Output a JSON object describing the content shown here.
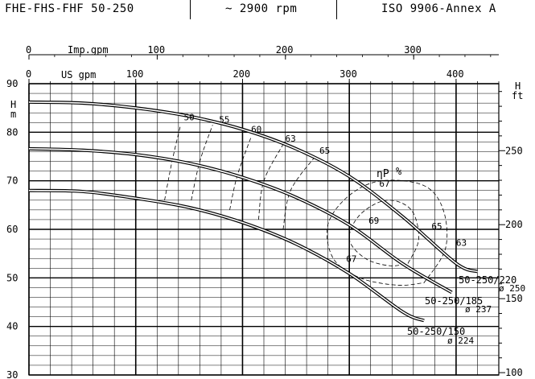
{
  "header": {
    "model": "FHE-FHS-FHF 50-250",
    "speed": "~ 2900 rpm",
    "standard": "ISO 9906-Annex A"
  },
  "chart_data": {
    "type": "line",
    "title": "",
    "x_primary": {
      "label": "US gpm",
      "ticks": [
        "0",
        "100",
        "200",
        "300",
        "400"
      ],
      "range": [
        0,
        440
      ]
    },
    "x_secondary": {
      "label": "Imp.gpm",
      "ticks": [
        "0",
        "100",
        "200",
        "300"
      ]
    },
    "y_left": {
      "unit_line1": "H",
      "unit_line2": "m",
      "ticks": [
        "30",
        "40",
        "50",
        "60",
        "70",
        "80",
        "90"
      ],
      "range": [
        30,
        90
      ]
    },
    "y_right": {
      "unit_line1": "H",
      "unit_line2": "ft",
      "ticks": [
        "100",
        "150",
        "200",
        "250"
      ]
    },
    "grid": true,
    "efficiency_label_main": "ηP",
    "efficiency_label_pct": "%",
    "series": [
      {
        "name": "50-250/220",
        "diameter": "ø 250",
        "points": [
          [
            0,
            86.2
          ],
          [
            50,
            86.0
          ],
          [
            100,
            85.0
          ],
          [
            150,
            83.3
          ],
          [
            200,
            80.6
          ],
          [
            250,
            76.6
          ],
          [
            300,
            70.9
          ],
          [
            350,
            62.6
          ],
          [
            400,
            53.0
          ],
          [
            420,
            51.3
          ]
        ]
      },
      {
        "name": "50-250/185",
        "diameter": "ø 237",
        "points": [
          [
            0,
            76.6
          ],
          [
            50,
            76.3
          ],
          [
            100,
            75.4
          ],
          [
            150,
            73.6
          ],
          [
            200,
            70.7
          ],
          [
            250,
            66.6
          ],
          [
            300,
            60.9
          ],
          [
            350,
            52.9
          ],
          [
            396,
            47.0
          ]
        ]
      },
      {
        "name": "50-250/150",
        "diameter": "ø 224",
        "points": [
          [
            0,
            68.0
          ],
          [
            50,
            67.8
          ],
          [
            100,
            66.4
          ],
          [
            150,
            64.5
          ],
          [
            200,
            61.4
          ],
          [
            250,
            57.0
          ],
          [
            300,
            50.9
          ],
          [
            350,
            43.0
          ],
          [
            370,
            41.2
          ]
        ]
      }
    ],
    "efficiency_labels": [
      "50",
      "55",
      "60",
      "63",
      "65",
      "67",
      "69",
      "67",
      "65",
      "63"
    ],
    "efficiency_points": [
      [
        145,
        82.5
      ],
      [
        178,
        82.0
      ],
      [
        208,
        80.0
      ],
      [
        240,
        78.1
      ],
      [
        272,
        75.6
      ],
      [
        328,
        68.8
      ],
      [
        318,
        61.2
      ],
      [
        297,
        53.3
      ],
      [
        377,
        60.0
      ],
      [
        400,
        56.6
      ]
    ],
    "iso_efficiency_curves": [
      {
        "value": "50",
        "points": [
          [
            127,
            66
          ],
          [
            134,
            74
          ],
          [
            142,
            81.5
          ]
        ]
      },
      {
        "value": "55",
        "points": [
          [
            152,
            66
          ],
          [
            160,
            74
          ],
          [
            172,
            81.5
          ]
        ]
      },
      {
        "value": "60",
        "points": [
          [
            188,
            64
          ],
          [
            195,
            71
          ],
          [
            208,
            79
          ]
        ]
      },
      {
        "value": "63",
        "points": [
          [
            215,
            62
          ],
          [
            220,
            70
          ],
          [
            238,
            77.5
          ]
        ]
      },
      {
        "value": "65",
        "points": [
          [
            238,
            60
          ],
          [
            245,
            68
          ],
          [
            268,
            75
          ]
        ]
      }
    ],
    "efficiency_island_outer": [
      [
        370,
        49
      ],
      [
        390,
        56
      ],
      [
        388,
        64
      ],
      [
        370,
        69
      ],
      [
        330,
        70
      ],
      [
        300,
        67
      ],
      [
        280,
        61
      ],
      [
        285,
        54
      ],
      [
        310,
        50
      ],
      [
        345,
        48.5
      ]
    ],
    "efficiency_island_inner": [
      [
        355,
        53
      ],
      [
        365,
        58
      ],
      [
        358,
        64
      ],
      [
        335,
        66
      ],
      [
        310,
        63
      ],
      [
        300,
        58
      ],
      [
        315,
        54
      ],
      [
        338,
        52.5
      ]
    ]
  }
}
